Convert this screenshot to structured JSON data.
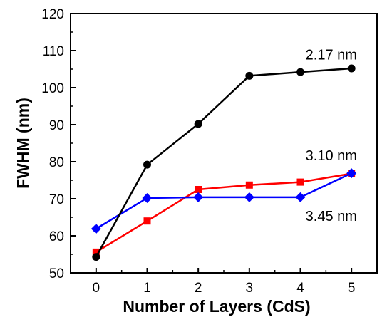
{
  "chart_data": {
    "type": "line",
    "xlabel": "Number of Layers (CdS)",
    "ylabel": "FWHM (nm)",
    "xlim": [
      -0.5,
      5.5
    ],
    "ylim": [
      50,
      120
    ],
    "xticks": [
      0,
      1,
      2,
      3,
      4,
      5
    ],
    "yticks": [
      50,
      60,
      70,
      80,
      90,
      100,
      110,
      120
    ],
    "grid": false,
    "legend": "none",
    "x": [
      0,
      1,
      2,
      3,
      4,
      5
    ],
    "series": [
      {
        "name": "2.17 nm",
        "color": "#000000",
        "marker": "circle",
        "values": [
          54.3,
          79.2,
          90.2,
          103.2,
          104.2,
          105.2
        ]
      },
      {
        "name": "3.10 nm",
        "color": "#ff0000",
        "marker": "square",
        "values": [
          55.6,
          64.0,
          72.5,
          73.7,
          74.5,
          76.8
        ]
      },
      {
        "name": "3.45 nm",
        "color": "#0000ff",
        "marker": "diamond",
        "values": [
          61.9,
          70.2,
          70.4,
          70.4,
          70.4,
          76.9
        ]
      }
    ],
    "annotations": [
      {
        "text": "2.17 nm",
        "x": 4.1,
        "y": 107.6
      },
      {
        "text": "3.10 nm",
        "x": 4.1,
        "y": 80.4
      },
      {
        "text": "3.45 nm",
        "x": 4.1,
        "y": 64.0
      }
    ]
  }
}
